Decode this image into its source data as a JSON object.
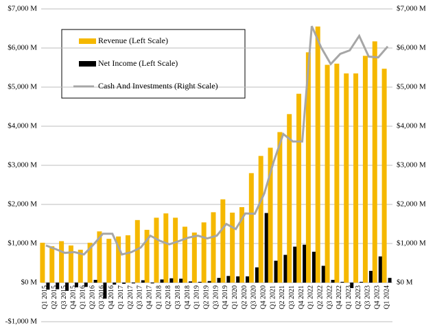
{
  "chart_data": {
    "type": "bar",
    "categories": [
      "Q1 2015",
      "Q2 2015",
      "Q3 2015",
      "Q4 2015",
      "Q1 2016",
      "Q2 2016",
      "Q3 2016",
      "Q4 2016",
      "Q1 2017",
      "Q2 2017",
      "Q3 2017",
      "Q4 2017",
      "Q1 2018",
      "Q2 2018",
      "Q3 2018",
      "Q4 2018",
      "Q1 2019",
      "Q2 2019",
      "Q3 2019",
      "Q4 2019",
      "Q1 2020",
      "Q2 2020",
      "Q3 2020",
      "Q4 2020",
      "Q1 2021",
      "Q2 2021",
      "Q3 2021",
      "Q4 2021",
      "Q1 2022",
      "Q2 2022",
      "Q3 2022",
      "Q4 2022",
      "Q1 2023",
      "Q2 2023",
      "Q3 2023",
      "Q4 2023",
      "Q1 2024"
    ],
    "series": [
      {
        "name": "Revenue (Left Scale)",
        "type": "bar",
        "color": "#f5b800",
        "values": [
          1020,
          930,
          1060,
          950,
          840,
          1020,
          1310,
          1120,
          1180,
          1210,
          1600,
          1350,
          1660,
          1770,
          1660,
          1430,
          1280,
          1540,
          1800,
          2130,
          1790,
          1930,
          2800,
          3240,
          3450,
          3850,
          4310,
          4830,
          5890,
          6550,
          5570,
          5600,
          5350,
          5350,
          5800,
          6170,
          5470
        ]
      },
      {
        "name": "Net Income (Left Scale)",
        "type": "bar",
        "color": "#000000",
        "values": [
          -180,
          -170,
          -210,
          -120,
          -110,
          70,
          -410,
          -50,
          -30,
          -20,
          60,
          -20,
          80,
          110,
          100,
          30,
          20,
          40,
          120,
          170,
          160,
          160,
          390,
          1780,
          560,
          710,
          920,
          970,
          790,
          430,
          70,
          20,
          -140,
          20,
          300,
          670,
          120
        ]
      },
      {
        "name": "Cash And Investments (Right Scale)",
        "type": "line",
        "axis": "y2",
        "color": "#a6a6a6",
        "values": [
          950,
          860,
          760,
          780,
          720,
          970,
          1250,
          1250,
          720,
          780,
          900,
          1200,
          1070,
          980,
          1060,
          1150,
          1200,
          1130,
          1200,
          1500,
          1370,
          1770,
          1760,
          2280,
          3100,
          3800,
          3610,
          3610,
          6560,
          6010,
          5590,
          5850,
          5940,
          6310,
          5780,
          5760,
          6040
        ]
      }
    ],
    "ylim": [
      -1000,
      7000
    ],
    "yticks": [
      {
        "value": -1000,
        "label": "-$1,000 M"
      },
      {
        "value": 0,
        "label": "$0 M"
      },
      {
        "value": 1000,
        "label": "$1,000 M"
      },
      {
        "value": 2000,
        "label": "$2,000 M"
      },
      {
        "value": 3000,
        "label": "$3,000 M"
      },
      {
        "value": 4000,
        "label": "$4,000 M"
      },
      {
        "value": 5000,
        "label": "$5,000 M"
      },
      {
        "value": 6000,
        "label": "$6,000 M"
      },
      {
        "value": 7000,
        "label": "$7,000 M"
      }
    ],
    "y2lim": [
      -1000,
      7000
    ],
    "y2ticks": [
      {
        "value": 0,
        "label": "$0 M"
      },
      {
        "value": 1000,
        "label": "$1,000 M"
      },
      {
        "value": 2000,
        "label": "$2,000 M"
      },
      {
        "value": 3000,
        "label": "$3,000 M"
      },
      {
        "value": 4000,
        "label": "$4,000 M"
      },
      {
        "value": 5000,
        "label": "$5,000 M"
      },
      {
        "value": 6000,
        "label": "$6,000 M"
      },
      {
        "value": 7000,
        "label": "$7,000 M"
      }
    ],
    "grid": true
  }
}
